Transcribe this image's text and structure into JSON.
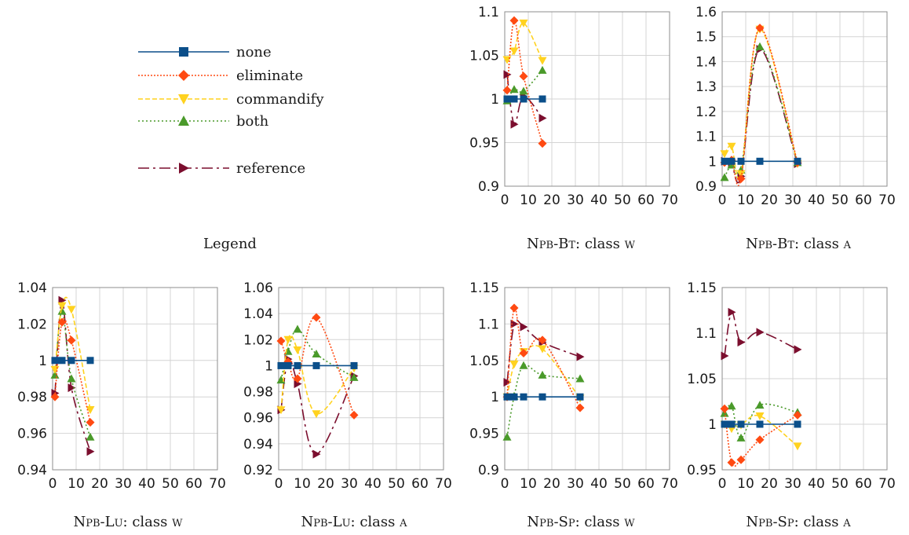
{
  "legend": {
    "caption": "Legend",
    "items": [
      {
        "key": "none",
        "label": "none"
      },
      {
        "key": "eliminate",
        "label": "eliminate"
      },
      {
        "key": "commandify",
        "label": "commandify"
      },
      {
        "key": "both",
        "label": "both"
      },
      {
        "key": "reference",
        "label": "reference"
      }
    ]
  },
  "series_styles": {
    "none": {
      "color": "#0b4f8a",
      "dash": "",
      "marker": "square"
    },
    "eliminate": {
      "color": "#ff4a12",
      "dash": "2 2",
      "marker": "diamond"
    },
    "commandify": {
      "color": "#ffd21f",
      "dash": "6 3",
      "marker": "triangle-down"
    },
    "both": {
      "color": "#4a9a2a",
      "dash": "2 3",
      "marker": "triangle-up"
    },
    "reference": {
      "color": "#7b0e2e",
      "dash": "14 5 3 5",
      "marker": "triangle-right"
    }
  },
  "chart_data": [
    {
      "type": "scatter",
      "title_main": "Npb-Bt",
      "title_class": "w",
      "xlim": [
        0,
        70
      ],
      "ylim": [
        0.9,
        1.1
      ],
      "xticks": [
        "0",
        "10",
        "20",
        "30",
        "40",
        "50",
        "60",
        "70"
      ],
      "yticks": [
        "0.9",
        "0.95",
        "1",
        "1.05",
        "1.1"
      ],
      "series": [
        {
          "name": "none",
          "x": [
            1,
            4,
            8,
            16
          ],
          "y": [
            1.0,
            1.0,
            1.0,
            1.0
          ]
        },
        {
          "name": "eliminate",
          "x": [
            1,
            4,
            8,
            16
          ],
          "y": [
            1.01,
            1.09,
            1.026,
            0.949
          ]
        },
        {
          "name": "commandify",
          "x": [
            1,
            4,
            8,
            16
          ],
          "y": [
            1.045,
            1.055,
            1.087,
            1.044
          ]
        },
        {
          "name": "both",
          "x": [
            1,
            4,
            8,
            16
          ],
          "y": [
            0.998,
            1.011,
            1.009,
            1.033
          ]
        },
        {
          "name": "reference",
          "x": [
            1,
            4,
            8,
            16
          ],
          "y": [
            1.028,
            0.971,
            1.003,
            0.978
          ]
        }
      ]
    },
    {
      "type": "scatter",
      "title_main": "Npb-Bt",
      "title_class": "a",
      "xlim": [
        0,
        70
      ],
      "ylim": [
        0.9,
        1.6
      ],
      "xticks": [
        "0",
        "10",
        "20",
        "30",
        "40",
        "50",
        "60",
        "70"
      ],
      "yticks": [
        "0.9",
        "1",
        "1.1",
        "1.2",
        "1.3",
        "1.4",
        "1.5",
        "1.6"
      ],
      "series": [
        {
          "name": "none",
          "x": [
            1,
            4,
            8,
            16,
            32
          ],
          "y": [
            1.0,
            1.0,
            1.0,
            1.0,
            1.0
          ]
        },
        {
          "name": "eliminate",
          "x": [
            1,
            4,
            8,
            16,
            32
          ],
          "y": [
            0.995,
            1.005,
            0.93,
            1.535,
            0.995
          ]
        },
        {
          "name": "commandify",
          "x": [
            1,
            4,
            8,
            16,
            32
          ],
          "y": [
            1.03,
            1.06,
            0.95,
            1.53,
            0.99
          ]
        },
        {
          "name": "both",
          "x": [
            1,
            4,
            8,
            16,
            32
          ],
          "y": [
            0.935,
            0.985,
            0.965,
            1.46,
            0.995
          ]
        },
        {
          "name": "reference",
          "x": [
            1,
            4,
            8,
            16,
            32
          ],
          "y": [
            1.0,
            0.99,
            0.94,
            1.45,
            0.99
          ]
        }
      ]
    },
    {
      "type": "scatter",
      "title_main": "Npb-Lu",
      "title_class": "w",
      "xlim": [
        0,
        70
      ],
      "ylim": [
        0.94,
        1.04
      ],
      "xticks": [
        "0",
        "10",
        "20",
        "30",
        "40",
        "50",
        "60",
        "70"
      ],
      "yticks": [
        "0.94",
        "0.96",
        "0.98",
        "1",
        "1.02",
        "1.04"
      ],
      "series": [
        {
          "name": "none",
          "x": [
            1,
            4,
            8,
            16
          ],
          "y": [
            1.0,
            1.0,
            1.0,
            1.0
          ]
        },
        {
          "name": "eliminate",
          "x": [
            1,
            4,
            8,
            16
          ],
          "y": [
            0.98,
            1.021,
            1.011,
            0.966
          ]
        },
        {
          "name": "commandify",
          "x": [
            1,
            4,
            8,
            16
          ],
          "y": [
            0.995,
            1.03,
            1.028,
            0.973
          ]
        },
        {
          "name": "both",
          "x": [
            1,
            4,
            8,
            16
          ],
          "y": [
            0.992,
            1.027,
            0.99,
            0.958
          ]
        },
        {
          "name": "reference",
          "x": [
            1,
            4,
            8,
            16
          ],
          "y": [
            0.982,
            1.033,
            0.985,
            0.95
          ]
        }
      ]
    },
    {
      "type": "scatter",
      "title_main": "Npb-Lu",
      "title_class": "a",
      "xlim": [
        0,
        70
      ],
      "ylim": [
        0.92,
        1.06
      ],
      "xticks": [
        "0",
        "10",
        "20",
        "30",
        "40",
        "50",
        "60",
        "70"
      ],
      "yticks": [
        "0.92",
        "0.94",
        "0.96",
        "0.98",
        "1",
        "1.02",
        "1.04",
        "1.06"
      ],
      "series": [
        {
          "name": "none",
          "x": [
            1,
            4,
            8,
            16,
            32
          ],
          "y": [
            1.0,
            1.0,
            1.0,
            1.0,
            1.0
          ]
        },
        {
          "name": "eliminate",
          "x": [
            1,
            4,
            8,
            16,
            32
          ],
          "y": [
            1.019,
            1.003,
            0.99,
            1.037,
            0.962
          ]
        },
        {
          "name": "commandify",
          "x": [
            1,
            4,
            8,
            16,
            32
          ],
          "y": [
            0.966,
            1.02,
            1.012,
            0.963,
            0.998
          ]
        },
        {
          "name": "both",
          "x": [
            1,
            4,
            8,
            16,
            32
          ],
          "y": [
            0.989,
            1.011,
            1.028,
            1.009,
            0.991
          ]
        },
        {
          "name": "reference",
          "x": [
            1,
            4,
            8,
            16,
            32
          ],
          "y": [
            0.966,
            1.005,
            0.986,
            0.932,
            0.992
          ]
        }
      ]
    },
    {
      "type": "scatter",
      "title_main": "Npb-Sp",
      "title_class": "w",
      "xlim": [
        0,
        70
      ],
      "ylim": [
        0.9,
        1.15
      ],
      "xticks": [
        "0",
        "10",
        "20",
        "30",
        "40",
        "50",
        "60",
        "70"
      ],
      "yticks": [
        "0.9",
        "0.95",
        "1",
        "1.05",
        "1.1",
        "1.15"
      ],
      "series": [
        {
          "name": "none",
          "x": [
            1,
            4,
            8,
            16,
            32
          ],
          "y": [
            1.0,
            1.0,
            1.0,
            1.0,
            1.0
          ]
        },
        {
          "name": "eliminate",
          "x": [
            1,
            4,
            8,
            16,
            32
          ],
          "y": [
            1.0,
            1.122,
            1.06,
            1.078,
            0.985
          ]
        },
        {
          "name": "commandify",
          "x": [
            1,
            4,
            8,
            16,
            32
          ],
          "y": [
            1.0,
            1.045,
            1.062,
            1.066,
            0.998
          ]
        },
        {
          "name": "both",
          "x": [
            1,
            4,
            8,
            16,
            32
          ],
          "y": [
            0.945,
            1.001,
            1.043,
            1.03,
            1.025
          ]
        },
        {
          "name": "reference",
          "x": [
            1,
            4,
            8,
            16,
            32
          ],
          "y": [
            1.02,
            1.1,
            1.096,
            1.075,
            1.055
          ]
        }
      ]
    },
    {
      "type": "scatter",
      "title_main": "Npb-Sp",
      "title_class": "a",
      "xlim": [
        0,
        70
      ],
      "ylim": [
        0.95,
        1.15
      ],
      "xticks": [
        "0",
        "10",
        "20",
        "30",
        "40",
        "50",
        "60",
        "70"
      ],
      "yticks": [
        "0.95",
        "1",
        "1.05",
        "1.1",
        "1.15"
      ],
      "series": [
        {
          "name": "none",
          "x": [
            1,
            4,
            8,
            16,
            32
          ],
          "y": [
            1.0,
            1.0,
            1.0,
            1.0,
            1.0
          ]
        },
        {
          "name": "eliminate",
          "x": [
            1,
            4,
            8,
            16,
            32
          ],
          "y": [
            1.017,
            0.958,
            0.961,
            0.983,
            1.01
          ]
        },
        {
          "name": "commandify",
          "x": [
            1,
            4,
            8,
            16,
            32
          ],
          "y": [
            1.0,
            0.995,
            0.999,
            1.009,
            0.976
          ]
        },
        {
          "name": "both",
          "x": [
            1,
            4,
            8,
            16,
            32
          ],
          "y": [
            1.012,
            1.02,
            0.985,
            1.021,
            1.013
          ]
        },
        {
          "name": "reference",
          "x": [
            1,
            4,
            8,
            16,
            32
          ],
          "y": [
            1.075,
            1.123,
            1.09,
            1.101,
            1.082
          ]
        }
      ]
    }
  ]
}
